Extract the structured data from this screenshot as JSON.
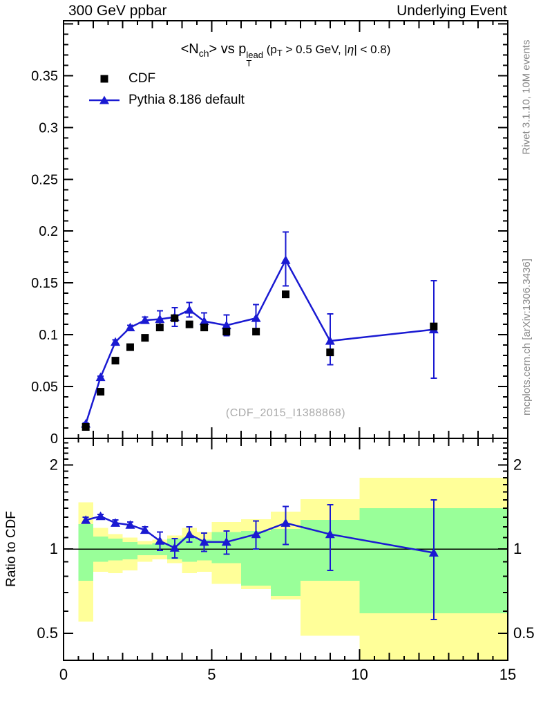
{
  "header": {
    "left": "300 GeV ppbar",
    "right": "Underlying Event"
  },
  "side_texts": {
    "top_right": "Rivet 3.1.10,  10M events",
    "bottom_right": "mcplots.cern.ch [arXiv:1306.3436]"
  },
  "watermark": "(CDF_2015_I1388868)",
  "colors": {
    "pythia_blue": "#1a1ad2",
    "cdf_black": "#000000",
    "band_yellow": "#ffff99",
    "band_green": "#99ff99",
    "gray_note": "#888888",
    "watermark_gray": "#aaaaaa"
  },
  "chart_data": {
    "type": "line",
    "title_text": "<Nch> vs pT^lead (pT > 0.5 GeV, |η| < 0.8)",
    "title_segments": [
      {
        "text": "<N",
        "style": "main"
      },
      {
        "text": "ch",
        "style": "sub"
      },
      {
        "text": "> vs p",
        "style": "main"
      },
      {
        "over": "lead",
        "under": "T",
        "style": "stack"
      },
      {
        "text": " (p",
        "style": "small"
      },
      {
        "text": "T",
        "style": "smallsub"
      },
      {
        "text": " > 0.5 GeV, |",
        "style": "small"
      },
      {
        "text": "η",
        "style": "smallitalic"
      },
      {
        "text": "| < 0.8)",
        "style": "small"
      }
    ],
    "legend_position": "top-left-inside",
    "grid": false,
    "x": [
      0.75,
      1.25,
      1.75,
      2.25,
      2.75,
      3.25,
      3.75,
      4.25,
      4.75,
      5.5,
      6.5,
      7.5,
      9.0,
      12.5
    ],
    "xlim": [
      0,
      15
    ],
    "x_ticklabels": [
      {
        "v": 0,
        "label": "0"
      },
      {
        "v": 5,
        "label": "5"
      },
      {
        "v": 10,
        "label": "10"
      },
      {
        "v": 15,
        "label": "15"
      }
    ],
    "main_panel": {
      "ylim": [
        0,
        0.403
      ],
      "ytick_major_step": 0.05,
      "ytick_minor_step": 0.01,
      "y_ticklabels": [
        {
          "v": 0,
          "label": "0"
        },
        {
          "v": 0.05,
          "label": "0.05"
        },
        {
          "v": 0.1,
          "label": "0.1"
        },
        {
          "v": 0.15,
          "label": "0.15"
        },
        {
          "v": 0.2,
          "label": "0.2"
        },
        {
          "v": 0.25,
          "label": "0.25"
        },
        {
          "v": 0.3,
          "label": "0.3"
        },
        {
          "v": 0.35,
          "label": "0.35"
        }
      ]
    },
    "series": [
      {
        "name": "CDF",
        "marker": "square",
        "color": "#000000",
        "line": false,
        "values": [
          0.011,
          0.045,
          0.075,
          0.088,
          0.097,
          0.107,
          0.116,
          0.11,
          0.107,
          0.103,
          0.103,
          0.139,
          0.083,
          0.108
        ]
      },
      {
        "name": "Pythia 8.186 default",
        "marker": "triangle",
        "color": "#1a1ad2",
        "line": true,
        "values": [
          0.014,
          0.059,
          0.093,
          0.107,
          0.114,
          0.115,
          0.117,
          0.124,
          0.113,
          0.109,
          0.116,
          0.172,
          0.094,
          0.105
        ],
        "err_up": [
          0.001,
          0.001,
          0.002,
          0.002,
          0.003,
          0.008,
          0.009,
          0.007,
          0.008,
          0.01,
          0.013,
          0.027,
          0.026,
          0.047
        ],
        "err_dn": [
          0.001,
          0.001,
          0.002,
          0.002,
          0.003,
          0.008,
          0.009,
          0.007,
          0.008,
          0.01,
          0.013,
          0.025,
          0.023,
          0.047
        ]
      }
    ],
    "ratio_panel": {
      "ylabel": "Ratio to CDF",
      "yscale": "log",
      "ylim": [
        0.4,
        2.49
      ],
      "y_ticklabels": [
        {
          "v": 0.5,
          "label": "0.5"
        },
        {
          "v": 1,
          "label": "1"
        },
        {
          "v": 2,
          "label": "2"
        }
      ],
      "y_minor_ticks": [
        0.6,
        0.7,
        0.8,
        0.9,
        1.1,
        1.2,
        1.3,
        1.4,
        1.5,
        1.6,
        1.7,
        1.8,
        1.9,
        2.1,
        2.2,
        2.3,
        2.4
      ],
      "reference_line": 1,
      "values": [
        1.27,
        1.31,
        1.24,
        1.22,
        1.17,
        1.07,
        1.01,
        1.13,
        1.06,
        1.06,
        1.13,
        1.24,
        1.13,
        0.97
      ],
      "err_up": [
        0.03,
        0.02,
        0.03,
        0.03,
        0.03,
        0.08,
        0.08,
        0.07,
        0.08,
        0.1,
        0.13,
        0.18,
        0.31,
        0.53
      ],
      "err_dn": [
        0.03,
        0.02,
        0.03,
        0.03,
        0.03,
        0.08,
        0.08,
        0.07,
        0.08,
        0.1,
        0.13,
        0.2,
        0.29,
        0.41
      ],
      "bands": [
        {
          "x1": 0.5,
          "x2": 1.0,
          "yellow": [
            0.55,
            1.47
          ],
          "green": [
            0.77,
            1.23
          ]
        },
        {
          "x1": 1.0,
          "x2": 1.5,
          "yellow": [
            0.83,
            1.19
          ],
          "green": [
            0.9,
            1.11
          ]
        },
        {
          "x1": 1.5,
          "x2": 2.0,
          "yellow": [
            0.82,
            1.13
          ],
          "green": [
            0.91,
            1.09
          ]
        },
        {
          "x1": 2.0,
          "x2": 2.5,
          "yellow": [
            0.84,
            1.1
          ],
          "green": [
            0.92,
            1.06
          ]
        },
        {
          "x1": 2.5,
          "x2": 3.0,
          "yellow": [
            0.9,
            1.07
          ],
          "green": [
            0.95,
            1.04
          ]
        },
        {
          "x1": 3.0,
          "x2": 3.5,
          "yellow": [
            0.92,
            1.08
          ],
          "green": [
            0.95,
            1.05
          ]
        },
        {
          "x1": 3.5,
          "x2": 4.0,
          "yellow": [
            0.89,
            1.12
          ],
          "green": [
            0.92,
            1.09
          ]
        },
        {
          "x1": 4.0,
          "x2": 4.5,
          "yellow": [
            0.82,
            1.19
          ],
          "green": [
            0.9,
            1.1
          ]
        },
        {
          "x1": 4.5,
          "x2": 5.0,
          "yellow": [
            0.83,
            1.15
          ],
          "green": [
            0.91,
            1.08
          ]
        },
        {
          "x1": 5.0,
          "x2": 6.0,
          "yellow": [
            0.75,
            1.25
          ],
          "green": [
            0.89,
            1.15
          ]
        },
        {
          "x1": 6.0,
          "x2": 7.0,
          "yellow": [
            0.72,
            1.28
          ],
          "green": [
            0.74,
            1.16
          ]
        },
        {
          "x1": 7.0,
          "x2": 8.0,
          "yellow": [
            0.66,
            1.36
          ],
          "green": [
            0.68,
            1.18
          ]
        },
        {
          "x1": 8.0,
          "x2": 10.0,
          "yellow": [
            0.49,
            1.51
          ],
          "green": [
            0.77,
            1.27
          ]
        },
        {
          "x1": 10.0,
          "x2": 15.0,
          "yellow": [
            0.4,
            1.8
          ],
          "green": [
            0.59,
            1.4
          ]
        }
      ]
    }
  }
}
